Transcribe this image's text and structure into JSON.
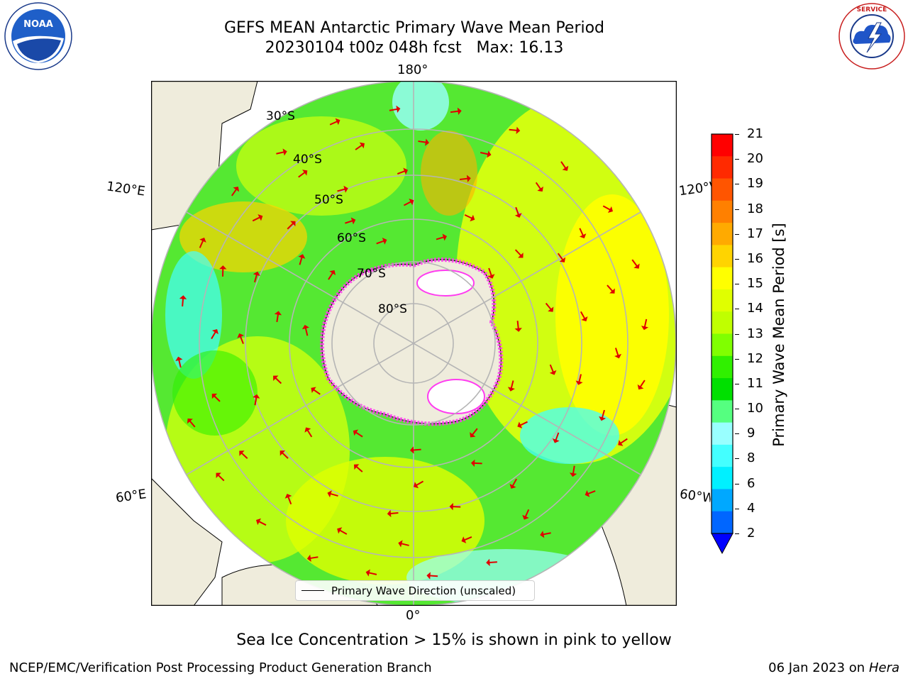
{
  "title": {
    "line1": "GEFS MEAN Antarctic Primary Wave Mean Period",
    "line2": "20230104 t00z 048h fcst   Max: 16.13"
  },
  "logos": {
    "left": {
      "icon": "noaa-logo",
      "text": "NOAA",
      "ring_text": "NATIONAL OCEANIC AND ATMOSPHERIC ADMINISTRATION · U.S. DEPARTMENT OF COMMERCE"
    },
    "right": {
      "icon": "nws-logo",
      "ring_text": "NATIONAL WEATHER SERVICE"
    }
  },
  "map": {
    "projection": "south-polar-stereographic",
    "longitude_labels": {
      "top": "180°",
      "bottom": "0°",
      "upper_left": "120°E",
      "lower_left": "60°E",
      "upper_right": "120°W",
      "lower_right": "60°W"
    },
    "latitude_labels": [
      "30°S",
      "40°S",
      "50°S",
      "60°S",
      "70°S",
      "80°S"
    ],
    "legend": {
      "label": "Primary Wave Direction (unscaled)"
    },
    "colors": {
      "land": "#efecdc",
      "ice_edge": "#ff3cf0",
      "arrow": "#e00000",
      "grid": "#b5b5b5"
    }
  },
  "colorbar": {
    "label": "Primary Wave Mean Period [s]",
    "ticks": [
      "21",
      "20",
      "19",
      "18",
      "17",
      "16",
      "15",
      "14",
      "13",
      "12",
      "11",
      "10",
      "9",
      "8",
      "6",
      "4",
      "2"
    ],
    "colors_top_to_bottom": [
      "#ff0000",
      "#ff2a00",
      "#ff5500",
      "#ff8000",
      "#ffaa00",
      "#ffd400",
      "#ffff00",
      "#e0ff00",
      "#c0ff00",
      "#80ff00",
      "#30f000",
      "#00e000",
      "#55ff80",
      "#99ffff",
      "#44ffff",
      "#00f0ff",
      "#00a8ff",
      "#0066ff"
    ],
    "extend_color": "#0000ff"
  },
  "subtitle": "Sea Ice Concentration > 15% is shown in pink to yellow",
  "footer": {
    "left": "NCEP/EMC/Verification Post Processing Product Generation Branch",
    "right_date": "06 Jan 2023 on",
    "right_machine": "Hera"
  }
}
